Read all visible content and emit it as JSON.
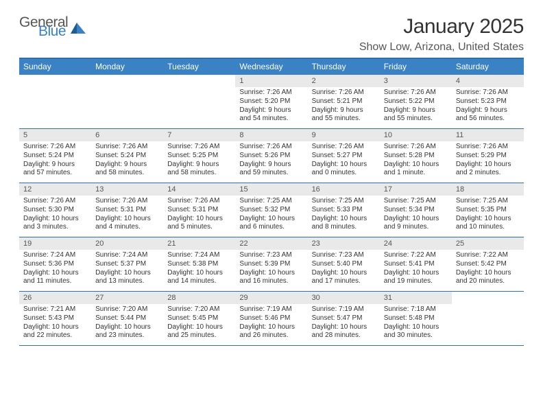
{
  "logo": {
    "line1": "General",
    "line2": "Blue"
  },
  "title": "January 2025",
  "location": "Show Low, Arizona, United States",
  "colors": {
    "header_bg": "#3a82c4",
    "header_border": "#2f6fa8",
    "daynum_bg": "#e9e9e9",
    "text": "#333333",
    "muted": "#555555",
    "white": "#ffffff"
  },
  "weekdays": [
    "Sunday",
    "Monday",
    "Tuesday",
    "Wednesday",
    "Thursday",
    "Friday",
    "Saturday"
  ],
  "weeks": [
    [
      {
        "n": "",
        "sr": "",
        "ss": "",
        "dl1": "",
        "dl2": ""
      },
      {
        "n": "",
        "sr": "",
        "ss": "",
        "dl1": "",
        "dl2": ""
      },
      {
        "n": "",
        "sr": "",
        "ss": "",
        "dl1": "",
        "dl2": ""
      },
      {
        "n": "1",
        "sr": "Sunrise: 7:26 AM",
        "ss": "Sunset: 5:20 PM",
        "dl1": "Daylight: 9 hours",
        "dl2": "and 54 minutes."
      },
      {
        "n": "2",
        "sr": "Sunrise: 7:26 AM",
        "ss": "Sunset: 5:21 PM",
        "dl1": "Daylight: 9 hours",
        "dl2": "and 55 minutes."
      },
      {
        "n": "3",
        "sr": "Sunrise: 7:26 AM",
        "ss": "Sunset: 5:22 PM",
        "dl1": "Daylight: 9 hours",
        "dl2": "and 55 minutes."
      },
      {
        "n": "4",
        "sr": "Sunrise: 7:26 AM",
        "ss": "Sunset: 5:23 PM",
        "dl1": "Daylight: 9 hours",
        "dl2": "and 56 minutes."
      }
    ],
    [
      {
        "n": "5",
        "sr": "Sunrise: 7:26 AM",
        "ss": "Sunset: 5:24 PM",
        "dl1": "Daylight: 9 hours",
        "dl2": "and 57 minutes."
      },
      {
        "n": "6",
        "sr": "Sunrise: 7:26 AM",
        "ss": "Sunset: 5:24 PM",
        "dl1": "Daylight: 9 hours",
        "dl2": "and 58 minutes."
      },
      {
        "n": "7",
        "sr": "Sunrise: 7:26 AM",
        "ss": "Sunset: 5:25 PM",
        "dl1": "Daylight: 9 hours",
        "dl2": "and 58 minutes."
      },
      {
        "n": "8",
        "sr": "Sunrise: 7:26 AM",
        "ss": "Sunset: 5:26 PM",
        "dl1": "Daylight: 9 hours",
        "dl2": "and 59 minutes."
      },
      {
        "n": "9",
        "sr": "Sunrise: 7:26 AM",
        "ss": "Sunset: 5:27 PM",
        "dl1": "Daylight: 10 hours",
        "dl2": "and 0 minutes."
      },
      {
        "n": "10",
        "sr": "Sunrise: 7:26 AM",
        "ss": "Sunset: 5:28 PM",
        "dl1": "Daylight: 10 hours",
        "dl2": "and 1 minute."
      },
      {
        "n": "11",
        "sr": "Sunrise: 7:26 AM",
        "ss": "Sunset: 5:29 PM",
        "dl1": "Daylight: 10 hours",
        "dl2": "and 2 minutes."
      }
    ],
    [
      {
        "n": "12",
        "sr": "Sunrise: 7:26 AM",
        "ss": "Sunset: 5:30 PM",
        "dl1": "Daylight: 10 hours",
        "dl2": "and 3 minutes."
      },
      {
        "n": "13",
        "sr": "Sunrise: 7:26 AM",
        "ss": "Sunset: 5:31 PM",
        "dl1": "Daylight: 10 hours",
        "dl2": "and 4 minutes."
      },
      {
        "n": "14",
        "sr": "Sunrise: 7:26 AM",
        "ss": "Sunset: 5:31 PM",
        "dl1": "Daylight: 10 hours",
        "dl2": "and 5 minutes."
      },
      {
        "n": "15",
        "sr": "Sunrise: 7:25 AM",
        "ss": "Sunset: 5:32 PM",
        "dl1": "Daylight: 10 hours",
        "dl2": "and 6 minutes."
      },
      {
        "n": "16",
        "sr": "Sunrise: 7:25 AM",
        "ss": "Sunset: 5:33 PM",
        "dl1": "Daylight: 10 hours",
        "dl2": "and 8 minutes."
      },
      {
        "n": "17",
        "sr": "Sunrise: 7:25 AM",
        "ss": "Sunset: 5:34 PM",
        "dl1": "Daylight: 10 hours",
        "dl2": "and 9 minutes."
      },
      {
        "n": "18",
        "sr": "Sunrise: 7:25 AM",
        "ss": "Sunset: 5:35 PM",
        "dl1": "Daylight: 10 hours",
        "dl2": "and 10 minutes."
      }
    ],
    [
      {
        "n": "19",
        "sr": "Sunrise: 7:24 AM",
        "ss": "Sunset: 5:36 PM",
        "dl1": "Daylight: 10 hours",
        "dl2": "and 11 minutes."
      },
      {
        "n": "20",
        "sr": "Sunrise: 7:24 AM",
        "ss": "Sunset: 5:37 PM",
        "dl1": "Daylight: 10 hours",
        "dl2": "and 13 minutes."
      },
      {
        "n": "21",
        "sr": "Sunrise: 7:24 AM",
        "ss": "Sunset: 5:38 PM",
        "dl1": "Daylight: 10 hours",
        "dl2": "and 14 minutes."
      },
      {
        "n": "22",
        "sr": "Sunrise: 7:23 AM",
        "ss": "Sunset: 5:39 PM",
        "dl1": "Daylight: 10 hours",
        "dl2": "and 16 minutes."
      },
      {
        "n": "23",
        "sr": "Sunrise: 7:23 AM",
        "ss": "Sunset: 5:40 PM",
        "dl1": "Daylight: 10 hours",
        "dl2": "and 17 minutes."
      },
      {
        "n": "24",
        "sr": "Sunrise: 7:22 AM",
        "ss": "Sunset: 5:41 PM",
        "dl1": "Daylight: 10 hours",
        "dl2": "and 19 minutes."
      },
      {
        "n": "25",
        "sr": "Sunrise: 7:22 AM",
        "ss": "Sunset: 5:42 PM",
        "dl1": "Daylight: 10 hours",
        "dl2": "and 20 minutes."
      }
    ],
    [
      {
        "n": "26",
        "sr": "Sunrise: 7:21 AM",
        "ss": "Sunset: 5:43 PM",
        "dl1": "Daylight: 10 hours",
        "dl2": "and 22 minutes."
      },
      {
        "n": "27",
        "sr": "Sunrise: 7:20 AM",
        "ss": "Sunset: 5:44 PM",
        "dl1": "Daylight: 10 hours",
        "dl2": "and 23 minutes."
      },
      {
        "n": "28",
        "sr": "Sunrise: 7:20 AM",
        "ss": "Sunset: 5:45 PM",
        "dl1": "Daylight: 10 hours",
        "dl2": "and 25 minutes."
      },
      {
        "n": "29",
        "sr": "Sunrise: 7:19 AM",
        "ss": "Sunset: 5:46 PM",
        "dl1": "Daylight: 10 hours",
        "dl2": "and 26 minutes."
      },
      {
        "n": "30",
        "sr": "Sunrise: 7:19 AM",
        "ss": "Sunset: 5:47 PM",
        "dl1": "Daylight: 10 hours",
        "dl2": "and 28 minutes."
      },
      {
        "n": "31",
        "sr": "Sunrise: 7:18 AM",
        "ss": "Sunset: 5:48 PM",
        "dl1": "Daylight: 10 hours",
        "dl2": "and 30 minutes."
      },
      {
        "n": "",
        "sr": "",
        "ss": "",
        "dl1": "",
        "dl2": ""
      }
    ]
  ]
}
